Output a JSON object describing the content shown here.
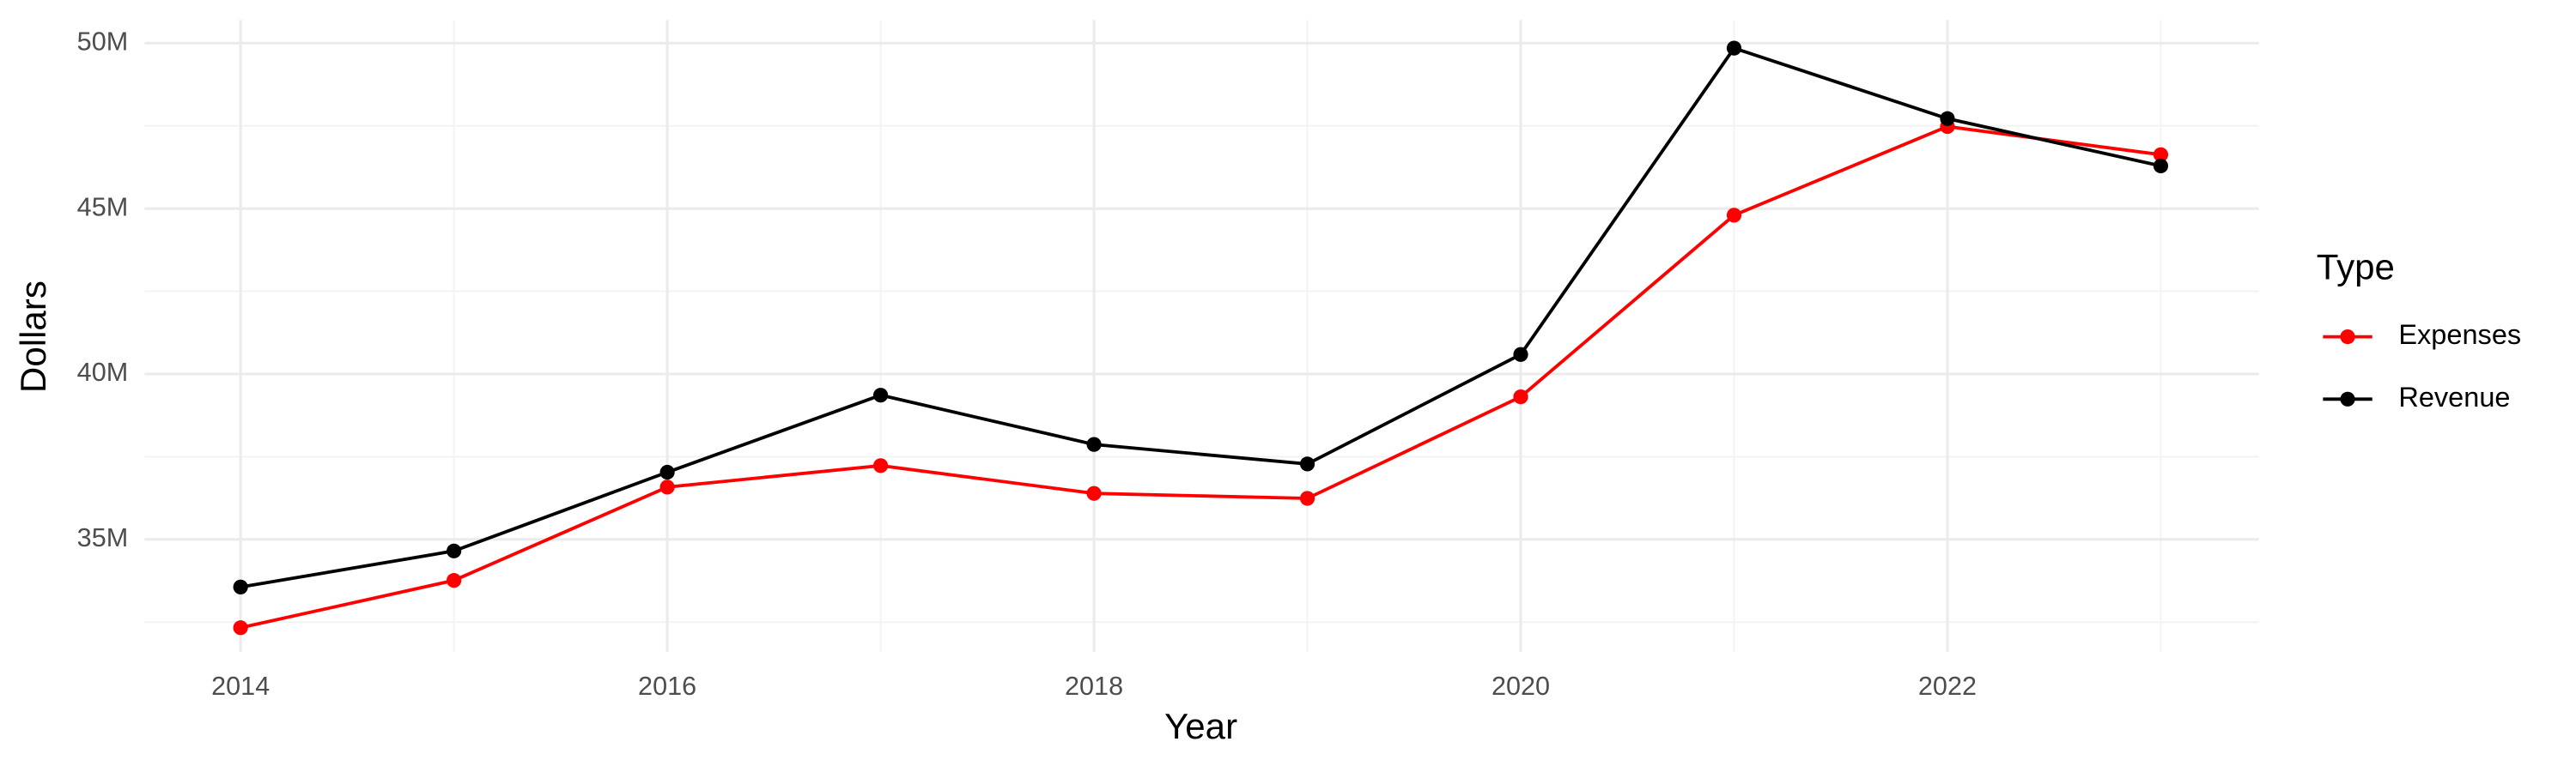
{
  "chart_data": {
    "type": "line",
    "x_label": "Year",
    "y_label": "Dollars",
    "legend_title": "Type",
    "legend_position": "right",
    "grid": true,
    "x": [
      2014,
      2015,
      2016,
      2017,
      2018,
      2019,
      2020,
      2021,
      2022,
      2023
    ],
    "series": [
      {
        "name": "Expenses",
        "color": "#ff0000",
        "values": [
          32330000,
          33760000,
          36580000,
          37230000,
          36390000,
          36240000,
          39310000,
          44800000,
          47480000,
          46630000
        ]
      },
      {
        "name": "Revenue",
        "color": "#000000",
        "values": [
          33560000,
          34650000,
          37030000,
          39360000,
          37870000,
          37280000,
          40590000,
          49850000,
          47720000,
          46290000
        ]
      }
    ],
    "xlim": [
      2013.55,
      2023.46
    ],
    "xticks": [
      2014,
      2016,
      2018,
      2020,
      2022
    ],
    "ylim": [
      31600000,
      50700000
    ],
    "yticks": [
      {
        "value": 35000000,
        "label": "35M"
      },
      {
        "value": 40000000,
        "label": "40M"
      },
      {
        "value": 45000000,
        "label": "45M"
      },
      {
        "value": 50000000,
        "label": "50M"
      }
    ]
  }
}
